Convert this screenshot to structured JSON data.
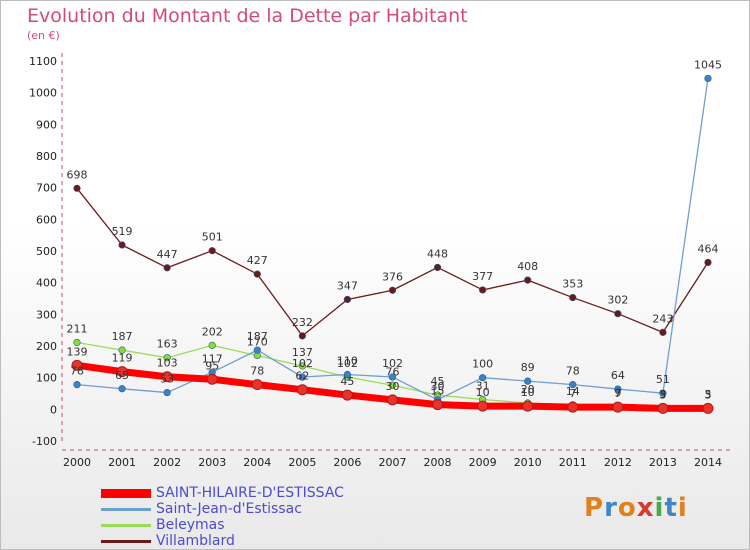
{
  "header": {
    "title": "Evolution du Montant de la Dette par Habitant",
    "subtitle": "(en €)"
  },
  "logo": {
    "text": "Proxiti",
    "colors": [
      "#e2801c",
      "#3f86c8",
      "#e2801c",
      "#d43b2c",
      "#4aa84a",
      "#3f86c8",
      "#e2801c"
    ]
  },
  "chart_data": {
    "type": "line",
    "title": "Evolution du Montant de la Dette par Habitant",
    "subtitle": "(en €)",
    "x": [
      "2000",
      "2001",
      "2002",
      "2003",
      "2004",
      "2005",
      "2006",
      "2007",
      "2008",
      "2009",
      "2010",
      "2011",
      "2012",
      "2013",
      "2014"
    ],
    "ylim": [
      -100,
      1100
    ],
    "yticks": [
      "-100",
      "0",
      "100",
      "200",
      "300",
      "400",
      "500",
      "600",
      "700",
      "800",
      "900",
      "1000",
      "1100"
    ],
    "grid": false,
    "legend_position": "bottom-left",
    "series": [
      {
        "name": "SAINT-HILAIRE-D'ESTISSAC",
        "color": "#ff0000",
        "marker": "#e8322c",
        "values": [
          139,
          119,
          103,
          95,
          78,
          62,
          45,
          30,
          15,
          10,
          10,
          7,
          7,
          3,
          3
        ],
        "labels": [
          "139",
          "119",
          "103",
          "95",
          "78",
          "62",
          "45",
          "30",
          "15",
          "10",
          "10",
          "7",
          "7",
          "3",
          "3"
        ]
      },
      {
        "name": "Saint-Jean-d'Estissac",
        "color": "#6f9fd0",
        "marker": "#3b83c8",
        "values": [
          78,
          65,
          53,
          117,
          187,
          102,
          110,
          102,
          30,
          100,
          89,
          78,
          64,
          51,
          1045
        ],
        "labels": [
          "78",
          "65",
          "53",
          "117",
          "187",
          "102",
          "110",
          "102",
          "30",
          "100",
          "89",
          "78",
          "64",
          "51",
          "1045"
        ]
      },
      {
        "name": "Beleymas",
        "color": "#99dd55",
        "marker": "#88dd33",
        "values": [
          211,
          187,
          163,
          202,
          170,
          137,
          102,
          76,
          45,
          31,
          20,
          14,
          9,
          5,
          5
        ],
        "labels": [
          "211",
          "187",
          "163",
          "202",
          "170",
          "137",
          "102",
          "76",
          "45",
          "31",
          "20",
          "14",
          "9",
          "5",
          "5"
        ]
      },
      {
        "name": "Villamblard",
        "color": "#6b1a1a",
        "marker": "#6b1a1a",
        "values": [
          698,
          519,
          447,
          501,
          427,
          232,
          347,
          376,
          448,
          377,
          408,
          353,
          302,
          243,
          464
        ],
        "labels": [
          "698",
          "519",
          "447",
          "501",
          "427",
          "232",
          "347",
          "376",
          "448",
          "377",
          "408",
          "353",
          "302",
          "243",
          "464"
        ]
      }
    ]
  }
}
